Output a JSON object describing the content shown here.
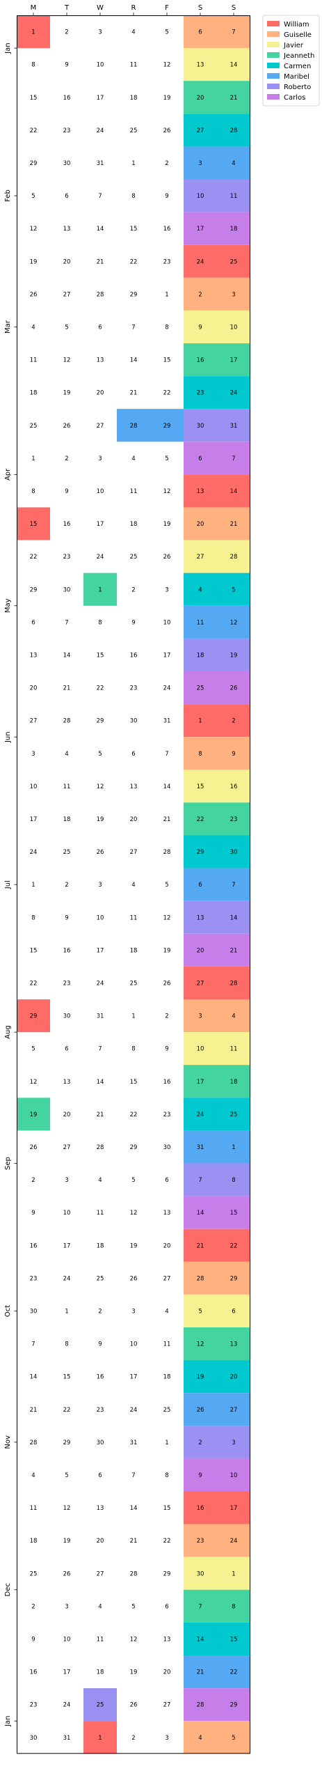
{
  "chart_data": {
    "type": "heatmap",
    "title": "",
    "xlabel": "",
    "ylabel": "",
    "day_headers": [
      "M",
      "T",
      "W",
      "R",
      "F",
      "S",
      "S"
    ],
    "legend": {
      "placement": "top-right outside",
      "entries": [
        {
          "name": "William",
          "color": "#FF6B66"
        },
        {
          "name": "Guiselle",
          "color": "#FFB27F"
        },
        {
          "name": "Javier",
          "color": "#F7F291"
        },
        {
          "name": "Jeanneth",
          "color": "#44D4A0"
        },
        {
          "name": "Carmen",
          "color": "#00C8CF"
        },
        {
          "name": "Maribel",
          "color": "#55A9F3"
        },
        {
          "name": "Roberto",
          "color": "#9B91F2"
        },
        {
          "name": "Carlos",
          "color": "#C67FE8"
        }
      ]
    },
    "month_labels": [
      {
        "label": "Jan",
        "row": 1
      },
      {
        "label": "Feb",
        "row": 5.5
      },
      {
        "label": "Mar",
        "row": 9.5
      },
      {
        "label": "Apr",
        "row": 14
      },
      {
        "label": "May",
        "row": 18
      },
      {
        "label": "Jun",
        "row": 22
      },
      {
        "label": "Jul",
        "row": 26.5
      },
      {
        "label": "Aug",
        "row": 31
      },
      {
        "label": "Sep",
        "row": 35
      },
      {
        "label": "Oct",
        "row": 39.5
      },
      {
        "label": "Nov",
        "row": 43.5
      },
      {
        "label": "Dec",
        "row": 48
      },
      {
        "label": "Jan",
        "row": 52
      }
    ],
    "weeks": [
      {
        "days": [
          1,
          2,
          3,
          4,
          5,
          6,
          7
        ],
        "colors": [
          "William",
          null,
          null,
          null,
          null,
          "Guiselle",
          "Guiselle"
        ]
      },
      {
        "days": [
          8,
          9,
          10,
          11,
          12,
          13,
          14
        ],
        "colors": [
          null,
          null,
          null,
          null,
          null,
          "Javier",
          "Javier"
        ]
      },
      {
        "days": [
          15,
          16,
          17,
          18,
          19,
          20,
          21
        ],
        "colors": [
          null,
          null,
          null,
          null,
          null,
          "Jeanneth",
          "Jeanneth"
        ]
      },
      {
        "days": [
          22,
          23,
          24,
          25,
          26,
          27,
          28
        ],
        "colors": [
          null,
          null,
          null,
          null,
          null,
          "Carmen",
          "Carmen"
        ]
      },
      {
        "days": [
          29,
          30,
          31,
          1,
          2,
          3,
          4
        ],
        "colors": [
          null,
          null,
          null,
          null,
          null,
          "Maribel",
          "Maribel"
        ]
      },
      {
        "days": [
          5,
          6,
          7,
          8,
          9,
          10,
          11
        ],
        "colors": [
          null,
          null,
          null,
          null,
          null,
          "Roberto",
          "Roberto"
        ]
      },
      {
        "days": [
          12,
          13,
          14,
          15,
          16,
          17,
          18
        ],
        "colors": [
          null,
          null,
          null,
          null,
          null,
          "Carlos",
          "Carlos"
        ]
      },
      {
        "days": [
          19,
          20,
          21,
          22,
          23,
          24,
          25
        ],
        "colors": [
          null,
          null,
          null,
          null,
          null,
          "William",
          "William"
        ]
      },
      {
        "days": [
          26,
          27,
          28,
          29,
          1,
          2,
          3
        ],
        "colors": [
          null,
          null,
          null,
          null,
          null,
          "Guiselle",
          "Guiselle"
        ]
      },
      {
        "days": [
          4,
          5,
          6,
          7,
          8,
          9,
          10
        ],
        "colors": [
          null,
          null,
          null,
          null,
          null,
          "Javier",
          "Javier"
        ]
      },
      {
        "days": [
          11,
          12,
          13,
          14,
          15,
          16,
          17
        ],
        "colors": [
          null,
          null,
          null,
          null,
          null,
          "Jeanneth",
          "Jeanneth"
        ]
      },
      {
        "days": [
          18,
          19,
          20,
          21,
          22,
          23,
          24
        ],
        "colors": [
          null,
          null,
          null,
          null,
          null,
          "Carmen",
          "Carmen"
        ]
      },
      {
        "days": [
          25,
          26,
          27,
          28,
          29,
          30,
          31
        ],
        "colors": [
          null,
          null,
          null,
          "Maribel",
          "Maribel",
          "Roberto",
          "Roberto"
        ]
      },
      {
        "days": [
          1,
          2,
          3,
          4,
          5,
          6,
          7
        ],
        "colors": [
          null,
          null,
          null,
          null,
          null,
          "Carlos",
          "Carlos"
        ]
      },
      {
        "days": [
          8,
          9,
          10,
          11,
          12,
          13,
          14
        ],
        "colors": [
          null,
          null,
          null,
          null,
          null,
          "William",
          "William"
        ]
      },
      {
        "days": [
          15,
          16,
          17,
          18,
          19,
          20,
          21
        ],
        "colors": [
          "William",
          null,
          null,
          null,
          null,
          "Guiselle",
          "Guiselle"
        ]
      },
      {
        "days": [
          22,
          23,
          24,
          25,
          26,
          27,
          28
        ],
        "colors": [
          null,
          null,
          null,
          null,
          null,
          "Javier",
          "Javier"
        ]
      },
      {
        "days": [
          29,
          30,
          1,
          2,
          3,
          4,
          5
        ],
        "colors": [
          null,
          null,
          "Jeanneth",
          null,
          null,
          "Carmen",
          "Carmen"
        ]
      },
      {
        "days": [
          6,
          7,
          8,
          9,
          10,
          11,
          12
        ],
        "colors": [
          null,
          null,
          null,
          null,
          null,
          "Maribel",
          "Maribel"
        ]
      },
      {
        "days": [
          13,
          14,
          15,
          16,
          17,
          18,
          19
        ],
        "colors": [
          null,
          null,
          null,
          null,
          null,
          "Roberto",
          "Roberto"
        ]
      },
      {
        "days": [
          20,
          21,
          22,
          23,
          24,
          25,
          26
        ],
        "colors": [
          null,
          null,
          null,
          null,
          null,
          "Carlos",
          "Carlos"
        ]
      },
      {
        "days": [
          27,
          28,
          29,
          30,
          31,
          1,
          2
        ],
        "colors": [
          null,
          null,
          null,
          null,
          null,
          "William",
          "William"
        ]
      },
      {
        "days": [
          3,
          4,
          5,
          6,
          7,
          8,
          9
        ],
        "colors": [
          null,
          null,
          null,
          null,
          null,
          "Guiselle",
          "Guiselle"
        ]
      },
      {
        "days": [
          10,
          11,
          12,
          13,
          14,
          15,
          16
        ],
        "colors": [
          null,
          null,
          null,
          null,
          null,
          "Javier",
          "Javier"
        ]
      },
      {
        "days": [
          17,
          18,
          19,
          20,
          21,
          22,
          23
        ],
        "colors": [
          null,
          null,
          null,
          null,
          null,
          "Jeanneth",
          "Jeanneth"
        ]
      },
      {
        "days": [
          24,
          25,
          26,
          27,
          28,
          29,
          30
        ],
        "colors": [
          null,
          null,
          null,
          null,
          null,
          "Carmen",
          "Carmen"
        ]
      },
      {
        "days": [
          1,
          2,
          3,
          4,
          5,
          6,
          7
        ],
        "colors": [
          null,
          null,
          null,
          null,
          null,
          "Maribel",
          "Maribel"
        ]
      },
      {
        "days": [
          8,
          9,
          10,
          11,
          12,
          13,
          14
        ],
        "colors": [
          null,
          null,
          null,
          null,
          null,
          "Roberto",
          "Roberto"
        ]
      },
      {
        "days": [
          15,
          16,
          17,
          18,
          19,
          20,
          21
        ],
        "colors": [
          null,
          null,
          null,
          null,
          null,
          "Carlos",
          "Carlos"
        ]
      },
      {
        "days": [
          22,
          23,
          24,
          25,
          26,
          27,
          28
        ],
        "colors": [
          null,
          null,
          null,
          null,
          null,
          "William",
          "William"
        ]
      },
      {
        "days": [
          29,
          30,
          31,
          1,
          2,
          3,
          4
        ],
        "colors": [
          "William",
          null,
          null,
          null,
          null,
          "Guiselle",
          "Guiselle"
        ]
      },
      {
        "days": [
          5,
          6,
          7,
          8,
          9,
          10,
          11
        ],
        "colors": [
          null,
          null,
          null,
          null,
          null,
          "Javier",
          "Javier"
        ]
      },
      {
        "days": [
          12,
          13,
          14,
          15,
          16,
          17,
          18
        ],
        "colors": [
          null,
          null,
          null,
          null,
          null,
          "Jeanneth",
          "Jeanneth"
        ]
      },
      {
        "days": [
          19,
          20,
          21,
          22,
          23,
          24,
          25
        ],
        "colors": [
          "Jeanneth",
          null,
          null,
          null,
          null,
          "Carmen",
          "Carmen"
        ]
      },
      {
        "days": [
          26,
          27,
          28,
          29,
          30,
          31,
          1
        ],
        "colors": [
          null,
          null,
          null,
          null,
          null,
          "Maribel",
          "Maribel"
        ]
      },
      {
        "days": [
          2,
          3,
          4,
          5,
          6,
          7,
          8
        ],
        "colors": [
          null,
          null,
          null,
          null,
          null,
          "Roberto",
          "Roberto"
        ]
      },
      {
        "days": [
          9,
          10,
          11,
          12,
          13,
          14,
          15
        ],
        "colors": [
          null,
          null,
          null,
          null,
          null,
          "Carlos",
          "Carlos"
        ]
      },
      {
        "days": [
          16,
          17,
          18,
          19,
          20,
          21,
          22
        ],
        "colors": [
          null,
          null,
          null,
          null,
          null,
          "William",
          "William"
        ]
      },
      {
        "days": [
          23,
          24,
          25,
          26,
          27,
          28,
          29
        ],
        "colors": [
          null,
          null,
          null,
          null,
          null,
          "Guiselle",
          "Guiselle"
        ]
      },
      {
        "days": [
          30,
          1,
          2,
          3,
          4,
          5,
          6
        ],
        "colors": [
          null,
          null,
          null,
          null,
          null,
          "Javier",
          "Javier"
        ]
      },
      {
        "days": [
          7,
          8,
          9,
          10,
          11,
          12,
          13
        ],
        "colors": [
          null,
          null,
          null,
          null,
          null,
          "Jeanneth",
          "Jeanneth"
        ]
      },
      {
        "days": [
          14,
          15,
          16,
          17,
          18,
          19,
          20
        ],
        "colors": [
          null,
          null,
          null,
          null,
          null,
          "Carmen",
          "Carmen"
        ]
      },
      {
        "days": [
          21,
          22,
          23,
          24,
          25,
          26,
          27
        ],
        "colors": [
          null,
          null,
          null,
          null,
          null,
          "Maribel",
          "Maribel"
        ]
      },
      {
        "days": [
          28,
          29,
          30,
          31,
          1,
          2,
          3
        ],
        "colors": [
          null,
          null,
          null,
          null,
          null,
          "Roberto",
          "Roberto"
        ]
      },
      {
        "days": [
          4,
          5,
          6,
          7,
          8,
          9,
          10
        ],
        "colors": [
          null,
          null,
          null,
          null,
          null,
          "Carlos",
          "Carlos"
        ]
      },
      {
        "days": [
          11,
          12,
          13,
          14,
          15,
          16,
          17
        ],
        "colors": [
          null,
          null,
          null,
          null,
          null,
          "William",
          "William"
        ]
      },
      {
        "days": [
          18,
          19,
          20,
          21,
          22,
          23,
          24
        ],
        "colors": [
          null,
          null,
          null,
          null,
          null,
          "Guiselle",
          "Guiselle"
        ]
      },
      {
        "days": [
          25,
          26,
          27,
          28,
          29,
          30,
          1
        ],
        "colors": [
          null,
          null,
          null,
          null,
          null,
          "Javier",
          "Javier"
        ]
      },
      {
        "days": [
          2,
          3,
          4,
          5,
          6,
          7,
          8
        ],
        "colors": [
          null,
          null,
          null,
          null,
          null,
          "Jeanneth",
          "Jeanneth"
        ]
      },
      {
        "days": [
          9,
          10,
          11,
          12,
          13,
          14,
          15
        ],
        "colors": [
          null,
          null,
          null,
          null,
          null,
          "Carmen",
          "Carmen"
        ]
      },
      {
        "days": [
          16,
          17,
          18,
          19,
          20,
          21,
          22
        ],
        "colors": [
          null,
          null,
          null,
          null,
          null,
          "Maribel",
          "Maribel"
        ]
      },
      {
        "days": [
          23,
          24,
          25,
          26,
          27,
          28,
          29
        ],
        "colors": [
          null,
          null,
          "Roberto",
          null,
          null,
          "Carlos",
          "Carlos"
        ]
      },
      {
        "days": [
          30,
          31,
          1,
          2,
          3,
          4,
          5
        ],
        "colors": [
          null,
          null,
          "William",
          null,
          null,
          "Guiselle",
          "Guiselle"
        ]
      }
    ]
  }
}
